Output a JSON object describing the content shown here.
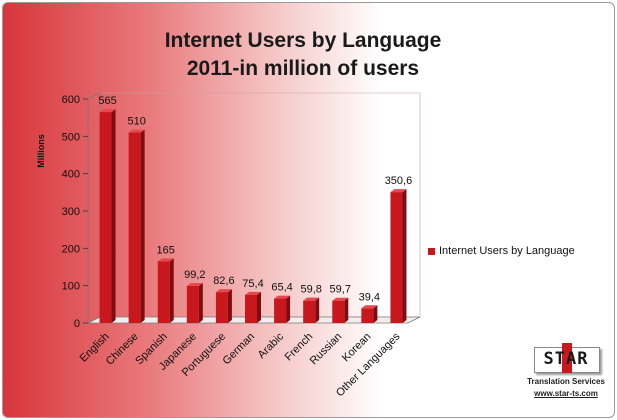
{
  "chart_data": {
    "type": "bar",
    "title": "Internet Users by Language",
    "subtitle": "2011-in million of users",
    "ylabel": "Millions",
    "xlabel": "",
    "ylim": [
      0,
      600
    ],
    "yticks": [
      0,
      100,
      200,
      300,
      400,
      500,
      600
    ],
    "categories": [
      "English",
      "Chinese",
      "Spanish",
      "Japanese",
      "Portuguese",
      "German",
      "Arabic",
      "French",
      "Russian",
      "Korean",
      "Other Languages"
    ],
    "series": [
      {
        "name": "Internet Users by Language",
        "values": [
          565,
          510,
          165,
          99.2,
          82.6,
          75.4,
          65.4,
          59.8,
          59.7,
          39.4,
          350.6
        ],
        "labels": [
          "565",
          "510",
          "165",
          "99,2",
          "82,6",
          "75,4",
          "65,4",
          "59,8",
          "59,7",
          "39,4",
          "350,6"
        ]
      }
    ],
    "legend": "right",
    "grid": false,
    "bar_color": "#c8171d",
    "background": "gradient red to white"
  },
  "logo": {
    "text": "STAR",
    "service": "Translation Services",
    "url": "www.star-ts.com"
  }
}
